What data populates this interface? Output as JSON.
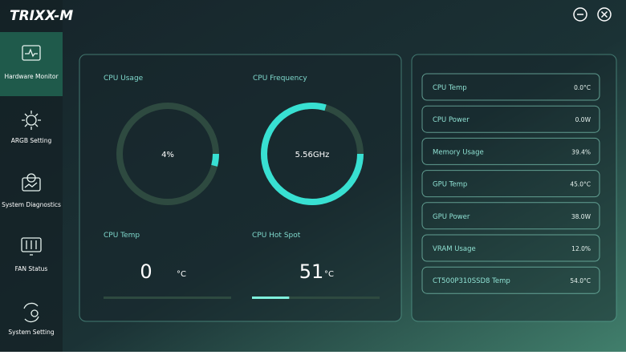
{
  "app": {
    "logo": "TRIXX-M"
  },
  "sidebar": {
    "items": [
      "Hardware Monitor",
      "ARGB Setting",
      "System Diagnostics",
      "FAN Status",
      "System Setting"
    ]
  },
  "gauges": [
    {
      "title": "CPU Usage",
      "value": 4,
      "value_label": "4%",
      "range": [
        0,
        100
      ]
    },
    {
      "title": "CPU Frequency",
      "value": 5.56,
      "value_label": "5.56GHz",
      "range": [
        0,
        7
      ]
    }
  ],
  "temps": [
    {
      "title": "CPU Temp",
      "value": 0,
      "unit": "°C",
      "range": [
        0,
        175
      ]
    },
    {
      "title": "CPU Hot Spot",
      "value": 51,
      "unit": "°C",
      "range": [
        0,
        175
      ]
    }
  ],
  "sensors": [
    {
      "name": "CPU Temp",
      "value": "0.0°C"
    },
    {
      "name": "CPU Power",
      "value": "0.0W"
    },
    {
      "name": "Memory Usage",
      "value": "39.4%"
    },
    {
      "name": "GPU Temp",
      "value": "45.0°C"
    },
    {
      "name": "GPU Power",
      "value": "38.0W"
    },
    {
      "name": "VRAM Usage",
      "value": "12.0%"
    },
    {
      "name": "CT500P310SSD8 Temp",
      "value": "54.0°C"
    }
  ]
}
